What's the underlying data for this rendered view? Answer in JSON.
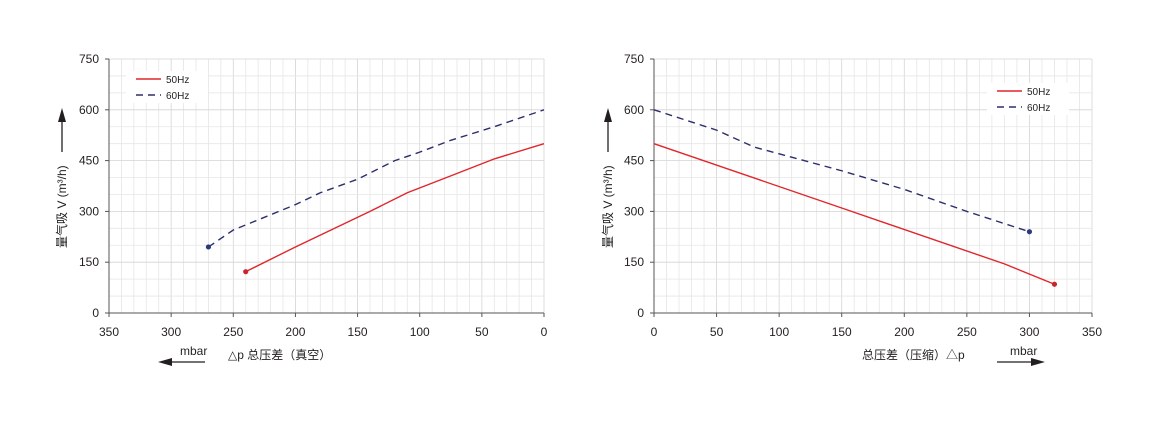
{
  "chart_data": [
    {
      "type": "line",
      "x_reversed": true,
      "xlim": [
        0,
        350
      ],
      "ylim": [
        0,
        750
      ],
      "xticks": [
        "350",
        "300",
        "250",
        "200",
        "150",
        "100",
        "50",
        "0"
      ],
      "yticks": [
        "0",
        "150",
        "300",
        "450",
        "600",
        "750"
      ],
      "xlabel": "△p  总压差（真空）",
      "xunit": "mbar",
      "ylabel": "量气吸 V (m³/h)",
      "grid": true,
      "legend_position": "top-left",
      "series": [
        {
          "name": "50Hz",
          "color": "#e0262b",
          "style": "solid",
          "x": [
            240,
            200,
            140,
            110,
            75,
            40,
            0
          ],
          "y": [
            122,
            195,
            300,
            355,
            405,
            455,
            500
          ]
        },
        {
          "name": "60Hz",
          "color": "#2b2f6b",
          "style": "dashed",
          "x": [
            270,
            250,
            200,
            180,
            150,
            120,
            100,
            75,
            40,
            0
          ],
          "y": [
            195,
            245,
            320,
            355,
            395,
            450,
            475,
            510,
            550,
            600
          ]
        }
      ]
    },
    {
      "type": "line",
      "x_reversed": false,
      "xlim": [
        0,
        350
      ],
      "ylim": [
        0,
        750
      ],
      "xticks": [
        "0",
        "50",
        "100",
        "150",
        "200",
        "250",
        "300",
        "350"
      ],
      "yticks": [
        "0",
        "150",
        "300",
        "450",
        "600",
        "750"
      ],
      "xlabel": "总压差（压缩）△p",
      "xunit": "mbar",
      "ylabel": "量气吸 V (m³/h)",
      "grid": true,
      "legend_position": "top-right",
      "series": [
        {
          "name": "50Hz",
          "color": "#e0262b",
          "style": "solid",
          "x": [
            0,
            150,
            280,
            320
          ],
          "y": [
            500,
            310,
            145,
            85
          ]
        },
        {
          "name": "60Hz",
          "color": "#2b2f6b",
          "style": "dashed",
          "x": [
            0,
            50,
            80,
            150,
            200,
            250,
            300
          ],
          "y": [
            600,
            540,
            490,
            420,
            365,
            300,
            240
          ]
        }
      ]
    }
  ]
}
